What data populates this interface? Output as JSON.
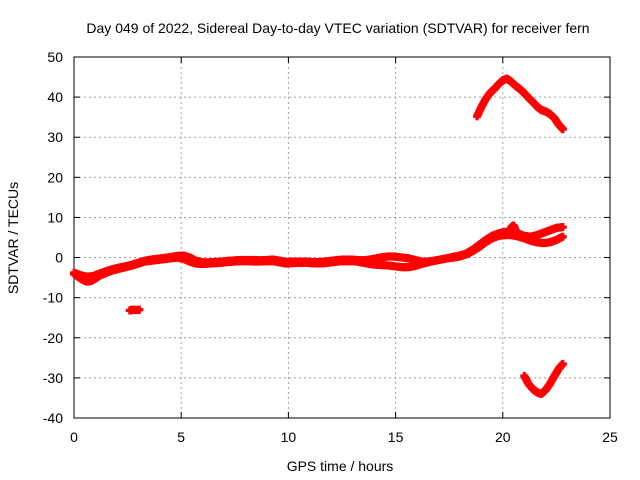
{
  "chart_data": {
    "type": "scatter",
    "title": "Day 049 of 2022, Sidereal Day-to-day VTEC variation (SDTVAR) for receiver fern",
    "xlabel": "GPS time / hours",
    "ylabel": "SDTVAR / TECUs",
    "xlim": [
      0,
      25
    ],
    "ylim": [
      -40,
      50
    ],
    "xticks": [
      0,
      5,
      10,
      15,
      20,
      25
    ],
    "yticks": [
      -40,
      -30,
      -20,
      -10,
      0,
      10,
      20,
      30,
      40,
      50
    ],
    "grid": true,
    "marker_color": "#ff0000",
    "series": [
      {
        "x": [
          0.0,
          0.2,
          0.4,
          0.6,
          0.8,
          1.0,
          1.2,
          1.5,
          1.8,
          2.1,
          2.4,
          2.7,
          3.0,
          3.3,
          3.6,
          3.9,
          4.2,
          4.5,
          4.8,
          5.1,
          5.4,
          5.7,
          6.0,
          6.3,
          6.6,
          6.9,
          7.2,
          7.5,
          7.8,
          8.1,
          8.4,
          8.7,
          9.0,
          9.3,
          9.6,
          9.9,
          10.2,
          10.5,
          10.8,
          11.1,
          11.4,
          11.7,
          12.0,
          12.3,
          12.6,
          12.9,
          13.2,
          13.5,
          13.8,
          14.1,
          14.4,
          14.7,
          15.0,
          15.3,
          15.6,
          15.9,
          16.2,
          16.5,
          16.8,
          17.1,
          17.4,
          17.7,
          18.0,
          18.3,
          18.6,
          18.9,
          19.2,
          19.5,
          19.8,
          20.1,
          20.4,
          20.7,
          21.0,
          21.3,
          21.6,
          21.9,
          22.2,
          22.5,
          22.8
        ],
        "y": [
          -4.0,
          -4.8,
          -5.5,
          -6.0,
          -5.8,
          -5.2,
          -4.5,
          -3.8,
          -3.2,
          -2.8,
          -2.4,
          -2.0,
          -1.5,
          -1.0,
          -0.8,
          -0.6,
          -0.4,
          -0.2,
          0.0,
          -0.3,
          -1.0,
          -1.5,
          -1.6,
          -1.5,
          -1.4,
          -1.3,
          -1.1,
          -1.0,
          -0.9,
          -0.9,
          -1.0,
          -1.0,
          -0.9,
          -0.9,
          -1.2,
          -1.5,
          -1.4,
          -1.3,
          -1.3,
          -1.4,
          -1.5,
          -1.4,
          -1.2,
          -1.0,
          -0.9,
          -0.9,
          -1.0,
          -1.3,
          -1.6,
          -1.8,
          -1.9,
          -2.0,
          -2.2,
          -2.4,
          -2.4,
          -2.1,
          -1.6,
          -1.2,
          -0.8,
          -0.5,
          -0.2,
          0.0,
          0.3,
          0.8,
          1.6,
          2.6,
          3.8,
          4.8,
          5.4,
          5.6,
          5.6,
          5.3,
          4.8,
          4.2,
          3.8,
          3.6,
          3.8,
          4.4,
          5.2
        ]
      },
      {
        "x": [
          0.0,
          0.3,
          0.6,
          0.9,
          1.2,
          1.5,
          1.8,
          2.1,
          2.4,
          2.7,
          3.0,
          3.3,
          3.6,
          3.9,
          4.2,
          4.5,
          4.8,
          5.1,
          5.4,
          5.7,
          6.0,
          6.3,
          6.6,
          6.9,
          7.2,
          7.5,
          7.8,
          8.1,
          8.4,
          8.7,
          9.0,
          9.3,
          9.6,
          9.9,
          10.2,
          10.5,
          10.8,
          11.1,
          11.4,
          11.7,
          12.0,
          12.3,
          12.6,
          12.9,
          13.2,
          13.5,
          13.8,
          14.1,
          14.4,
          14.7,
          15.0,
          15.3,
          15.6,
          15.9,
          16.2,
          16.5,
          16.8,
          17.1,
          17.4,
          17.7,
          18.0,
          18.3,
          18.6,
          18.9,
          19.2,
          19.5,
          19.8,
          20.1,
          20.4,
          20.7,
          21.0,
          21.3,
          21.6,
          21.9,
          22.2,
          22.5,
          22.8
        ],
        "y": [
          -3.8,
          -4.4,
          -4.8,
          -4.6,
          -4.0,
          -3.4,
          -2.9,
          -2.5,
          -2.2,
          -1.8,
          -1.3,
          -0.8,
          -0.5,
          -0.3,
          -0.1,
          0.1,
          0.4,
          0.5,
          0.0,
          -0.8,
          -1.2,
          -1.2,
          -1.1,
          -1.0,
          -0.8,
          -0.7,
          -0.6,
          -0.6,
          -0.6,
          -0.7,
          -0.6,
          -0.5,
          -0.8,
          -1.1,
          -1.0,
          -1.0,
          -1.0,
          -1.1,
          -1.1,
          -1.0,
          -0.8,
          -0.6,
          -0.5,
          -0.5,
          -0.6,
          -0.7,
          -0.5,
          -0.2,
          0.1,
          0.3,
          0.2,
          0.0,
          -0.2,
          -0.6,
          -1.0,
          -1.0,
          -0.8,
          -0.5,
          -0.2,
          0.2,
          0.5,
          1.0,
          2.0,
          3.2,
          4.4,
          5.4,
          6.0,
          6.4,
          6.4,
          6.0,
          5.4,
          5.2,
          5.6,
          6.2,
          6.8,
          7.4,
          7.6
        ]
      },
      {
        "x": [
          2.6,
          2.75,
          2.9,
          3.05
        ],
        "y": [
          -13.2,
          -13.0,
          -13.1,
          -13.0
        ]
      },
      {
        "x": [
          18.8,
          19.0,
          19.2,
          19.4,
          19.6,
          19.8,
          20.0,
          20.2,
          20.4,
          20.6,
          20.8,
          21.0,
          21.2,
          21.4,
          21.6,
          21.8,
          22.0,
          22.2,
          22.4,
          22.6,
          22.8
        ],
        "y": [
          35.2,
          37.5,
          39.5,
          41.0,
          42.0,
          43.2,
          44.2,
          44.6,
          43.8,
          42.8,
          42.0,
          41.0,
          39.8,
          38.8,
          37.6,
          36.8,
          36.4,
          35.8,
          34.8,
          33.2,
          32.0
        ]
      },
      {
        "x": [
          21.0,
          21.2,
          21.4,
          21.6,
          21.8,
          22.0,
          22.2,
          22.4,
          22.6,
          22.8
        ],
        "y": [
          -29.5,
          -31.5,
          -32.8,
          -33.6,
          -34.0,
          -33.0,
          -31.5,
          -29.6,
          -27.8,
          -26.5
        ]
      },
      {
        "x": [
          20.3,
          20.4,
          20.5,
          20.6
        ],
        "y": [
          6.0,
          7.5,
          8.0,
          6.8
        ]
      }
    ]
  }
}
